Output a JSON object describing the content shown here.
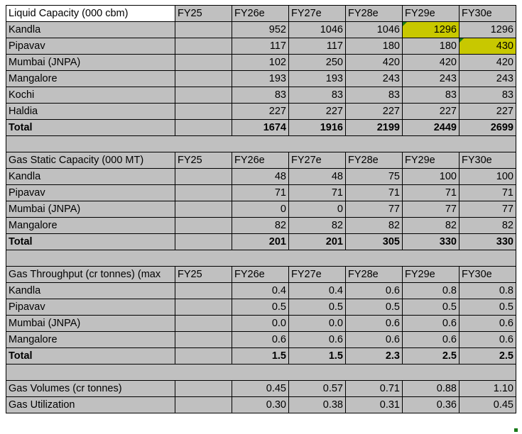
{
  "sections": [
    {
      "header": [
        "Liquid Capacity (000 cbm)",
        "FY25",
        "FY26e",
        "FY27e",
        "FY28e",
        "FY29e",
        "FY30e"
      ],
      "rows": [
        [
          "Kandla",
          "",
          "952",
          "1046",
          "1046",
          "1296",
          "1296"
        ],
        [
          "Pipavav",
          "",
          "117",
          "117",
          "180",
          "180",
          "430"
        ],
        [
          "Mumbai (JNPA)",
          "",
          "102",
          "250",
          "420",
          "420",
          "420"
        ],
        [
          "Mangalore",
          "",
          "193",
          "193",
          "243",
          "243",
          "243"
        ],
        [
          "Kochi",
          "",
          "83",
          "83",
          "83",
          "83",
          "83"
        ],
        [
          "Haldia",
          "",
          "227",
          "227",
          "227",
          "227",
          "227"
        ]
      ],
      "total": [
        "Total",
        "",
        "1674",
        "1916",
        "2199",
        "2449",
        "2699"
      ]
    },
    {
      "header": [
        "Gas Static Capacity (000 MT)",
        "FY25",
        "FY26e",
        "FY27e",
        "FY28e",
        "FY29e",
        "FY30e"
      ],
      "rows": [
        [
          "Kandla",
          "",
          "48",
          "48",
          "75",
          "100",
          "100"
        ],
        [
          "Pipavav",
          "",
          "71",
          "71",
          "71",
          "71",
          "71"
        ],
        [
          "Mumbai (JNPA)",
          "",
          "0",
          "0",
          "77",
          "77",
          "77"
        ],
        [
          "Mangalore",
          "",
          "82",
          "82",
          "82",
          "82",
          "82"
        ]
      ],
      "total": [
        "Total",
        "",
        "201",
        "201",
        "305",
        "330",
        "330"
      ]
    },
    {
      "header": [
        "Gas Throughput (cr tonnes) (max",
        "FY25",
        "FY26e",
        "FY27e",
        "FY28e",
        "FY29e",
        "FY30e"
      ],
      "rows": [
        [
          "Kandla",
          "",
          "0.4",
          "0.4",
          "0.6",
          "0.8",
          "0.8"
        ],
        [
          "Pipavav",
          "",
          "0.5",
          "0.5",
          "0.5",
          "0.5",
          "0.5"
        ],
        [
          "Mumbai (JNPA)",
          "",
          "0.0",
          "0.0",
          "0.6",
          "0.6",
          "0.6"
        ],
        [
          "Mangalore",
          "",
          "0.6",
          "0.6",
          "0.6",
          "0.6",
          "0.6"
        ]
      ],
      "total": [
        "Total",
        "",
        "1.5",
        "1.5",
        "2.3",
        "2.5",
        "2.5"
      ]
    }
  ],
  "summary": [
    [
      "Gas Volumes (cr tonnes)",
      "",
      "0.45",
      "0.57",
      "0.71",
      "0.88",
      "1.10"
    ],
    [
      "Gas Utilization",
      "",
      "0.30",
      "0.38",
      "0.31",
      "0.36",
      "0.45"
    ]
  ],
  "colors": {
    "cell_background": "#c0c0c0",
    "highlight": "#c8c800",
    "comment_marker": "#1a7a1a"
  }
}
